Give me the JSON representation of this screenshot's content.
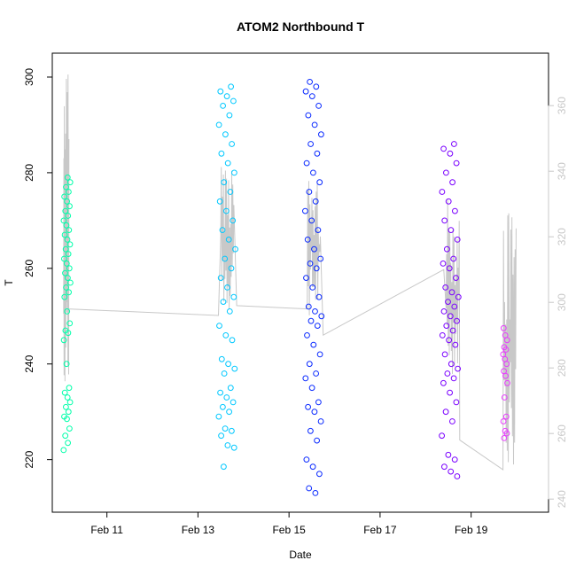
{
  "chart_data": {
    "type": "scatter",
    "title": "ATOM2 Northbound T",
    "xlabel": "Date",
    "ylabel": "T",
    "x_axis": {
      "range_days": [
        9.8,
        20.7
      ],
      "ticks": [
        {
          "day": 11,
          "label": "Feb 11"
        },
        {
          "day": 13,
          "label": "Feb 13"
        },
        {
          "day": 15,
          "label": "Feb 15"
        },
        {
          "day": 17,
          "label": "Feb 17"
        },
        {
          "day": 19,
          "label": "Feb 19"
        }
      ]
    },
    "y_left": {
      "range": [
        209,
        305
      ],
      "ticks": [
        220,
        240,
        260,
        280,
        300
      ]
    },
    "y_right": {
      "range": [
        236,
        376
      ],
      "ticks": [
        240,
        260,
        280,
        300,
        320,
        340,
        360
      ],
      "color": "#c8c8c8"
    },
    "grid": false,
    "series": [
      {
        "color": "#00ffaa",
        "day_range": [
          10.05,
          10.2
        ],
        "values": [
          222,
          223.5,
          225,
          226.5,
          228.5,
          229,
          230,
          231,
          232,
          233,
          234,
          235,
          240,
          245,
          246.5,
          247,
          248.5,
          251,
          254,
          255,
          256,
          257,
          258,
          259,
          260,
          261,
          262,
          263,
          264,
          265,
          266,
          267,
          268,
          269,
          270,
          271,
          272,
          273,
          274,
          275,
          276,
          277,
          278,
          279
        ]
      },
      {
        "color": "#00c8ff",
        "day_range": [
          13.45,
          13.82
        ],
        "values": [
          218.5,
          222.5,
          223,
          225,
          226,
          226.5,
          229,
          230,
          231,
          232,
          233,
          234,
          235,
          238,
          239,
          240,
          241,
          245,
          246,
          248,
          251,
          253,
          254,
          256,
          258,
          260,
          262,
          264,
          266,
          268,
          270,
          272,
          274,
          276,
          278,
          280,
          282,
          284,
          286,
          288,
          290,
          292,
          294,
          295,
          296,
          297,
          298
        ]
      },
      {
        "color": "#0a2aff",
        "day_range": [
          15.35,
          15.72
        ],
        "values": [
          213,
          214,
          217,
          218.5,
          220,
          224,
          226,
          228,
          230,
          231,
          232,
          235,
          237,
          238,
          240,
          242,
          244,
          246,
          248,
          249,
          250,
          251,
          252,
          254,
          256,
          258,
          260,
          261,
          262,
          264,
          266,
          268,
          270,
          272,
          274,
          276,
          278,
          280,
          282,
          284,
          286,
          288,
          290,
          292,
          294,
          296,
          297,
          298,
          299
        ]
      },
      {
        "color": "#7a00ff",
        "day_range": [
          18.35,
          18.72
        ],
        "values": [
          216.5,
          217.5,
          218.5,
          220,
          221,
          225,
          228,
          230,
          232,
          234,
          236,
          237,
          238,
          239,
          240,
          242,
          244,
          245,
          246,
          247,
          248,
          249,
          250,
          251,
          252,
          253,
          254,
          255,
          256,
          258,
          260,
          261,
          262,
          264,
          266,
          268,
          270,
          272,
          274,
          276,
          278,
          280,
          282,
          284,
          285,
          286
        ]
      },
      {
        "color": "#e83cff",
        "day_range": [
          19.7,
          19.8
        ],
        "values": [
          224.5,
          225.5,
          226,
          228,
          229,
          233,
          236,
          237.5,
          238.5,
          240,
          241,
          242,
          243,
          243.5,
          245,
          246,
          247.5
        ]
      }
    ],
    "secondary_line": {
      "color": "#c8c8c8",
      "scale": "y_right",
      "description_values": [
        {
          "day": 10.05,
          "min": 272,
          "max": 372
        },
        {
          "day": 10.15,
          "value": 298
        },
        {
          "day": 13.45,
          "value": 296
        },
        {
          "day": 13.5,
          "min": 296,
          "max": 346
        },
        {
          "day": 13.85,
          "value": 299
        },
        {
          "day": 15.4,
          "min": 295,
          "max": 339
        },
        {
          "day": 15.75,
          "value": 290
        },
        {
          "day": 18.4,
          "value": 310
        },
        {
          "day": 18.45,
          "min": 278,
          "max": 332
        },
        {
          "day": 18.75,
          "value": 258
        },
        {
          "day": 19.7,
          "min": 248,
          "max": 328
        }
      ]
    }
  }
}
